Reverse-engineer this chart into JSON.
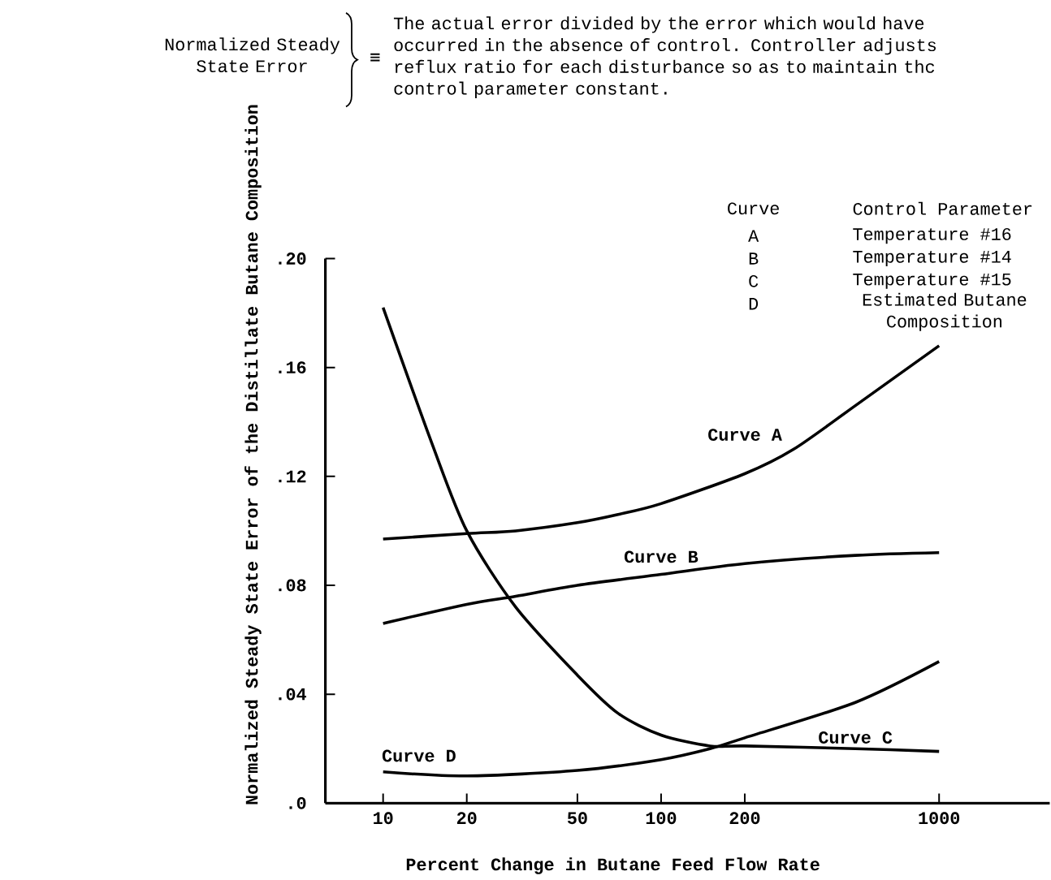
{
  "chart_data": {
    "type": "line",
    "xlabel": "Percent Change in Butane Feed Flow Rate",
    "ylabel": "Normalized  Steady State Error of the Distillate Butane Composition",
    "log": "x",
    "marker": "none",
    "xlim": [
      6.2,
      2500
    ],
    "xticks": [
      10,
      20,
      50,
      100,
      200,
      1000
    ],
    "ylim": [
      0,
      0.2
    ],
    "yticks": [
      {
        "value": 0,
        "label": ".0"
      },
      {
        "value": 0.04,
        "label": ".04"
      },
      {
        "value": 0.08,
        "label": ".08"
      },
      {
        "value": 0.12,
        "label": ".12"
      },
      {
        "value": 0.16,
        "label": ".16"
      },
      {
        "value": 0.2,
        "label": ".20"
      }
    ],
    "series": [
      {
        "name": "Curve A",
        "color": "#000000",
        "x": [
          10,
          20,
          30,
          50,
          70,
          100,
          200,
          300,
          500,
          1000
        ],
        "values": [
          0.097,
          0.099,
          0.1,
          0.103,
          0.106,
          0.11,
          0.121,
          0.13,
          0.146,
          0.168
        ]
      },
      {
        "name": "Curve B",
        "color": "#000000",
        "x": [
          10,
          20,
          30,
          50,
          100,
          200,
          500,
          1000
        ],
        "values": [
          0.066,
          0.073,
          0.076,
          0.08,
          0.084,
          0.088,
          0.091,
          0.092
        ]
      },
      {
        "name": "Curve C",
        "color": "#000000",
        "x": [
          10,
          15,
          20,
          30,
          50,
          70,
          100,
          150,
          200,
          500,
          1000
        ],
        "values": [
          0.182,
          0.132,
          0.1,
          0.072,
          0.047,
          0.033,
          0.025,
          0.021,
          0.021,
          0.02,
          0.019
        ]
      },
      {
        "name": "Curve D",
        "color": "#000000",
        "x": [
          10,
          20,
          50,
          100,
          150,
          200,
          500,
          1000
        ],
        "values": [
          0.0115,
          0.01,
          0.012,
          0.016,
          0.02,
          0.024,
          0.037,
          0.052
        ]
      }
    ],
    "annotations": [
      "Normalized Steady State Error",
      "≡",
      "The actual error divided by the error which would have occurred in the absence of control. Controller adjusts reflux ratio for each disturbance so as to maintain thc control parameter constant.",
      "Curve",
      "Control Parameter",
      "A",
      "Temperature #16",
      "B",
      "Temperature #14",
      "C",
      "Temperature #15",
      "D",
      "Estimated Butane Composition"
    ]
  }
}
